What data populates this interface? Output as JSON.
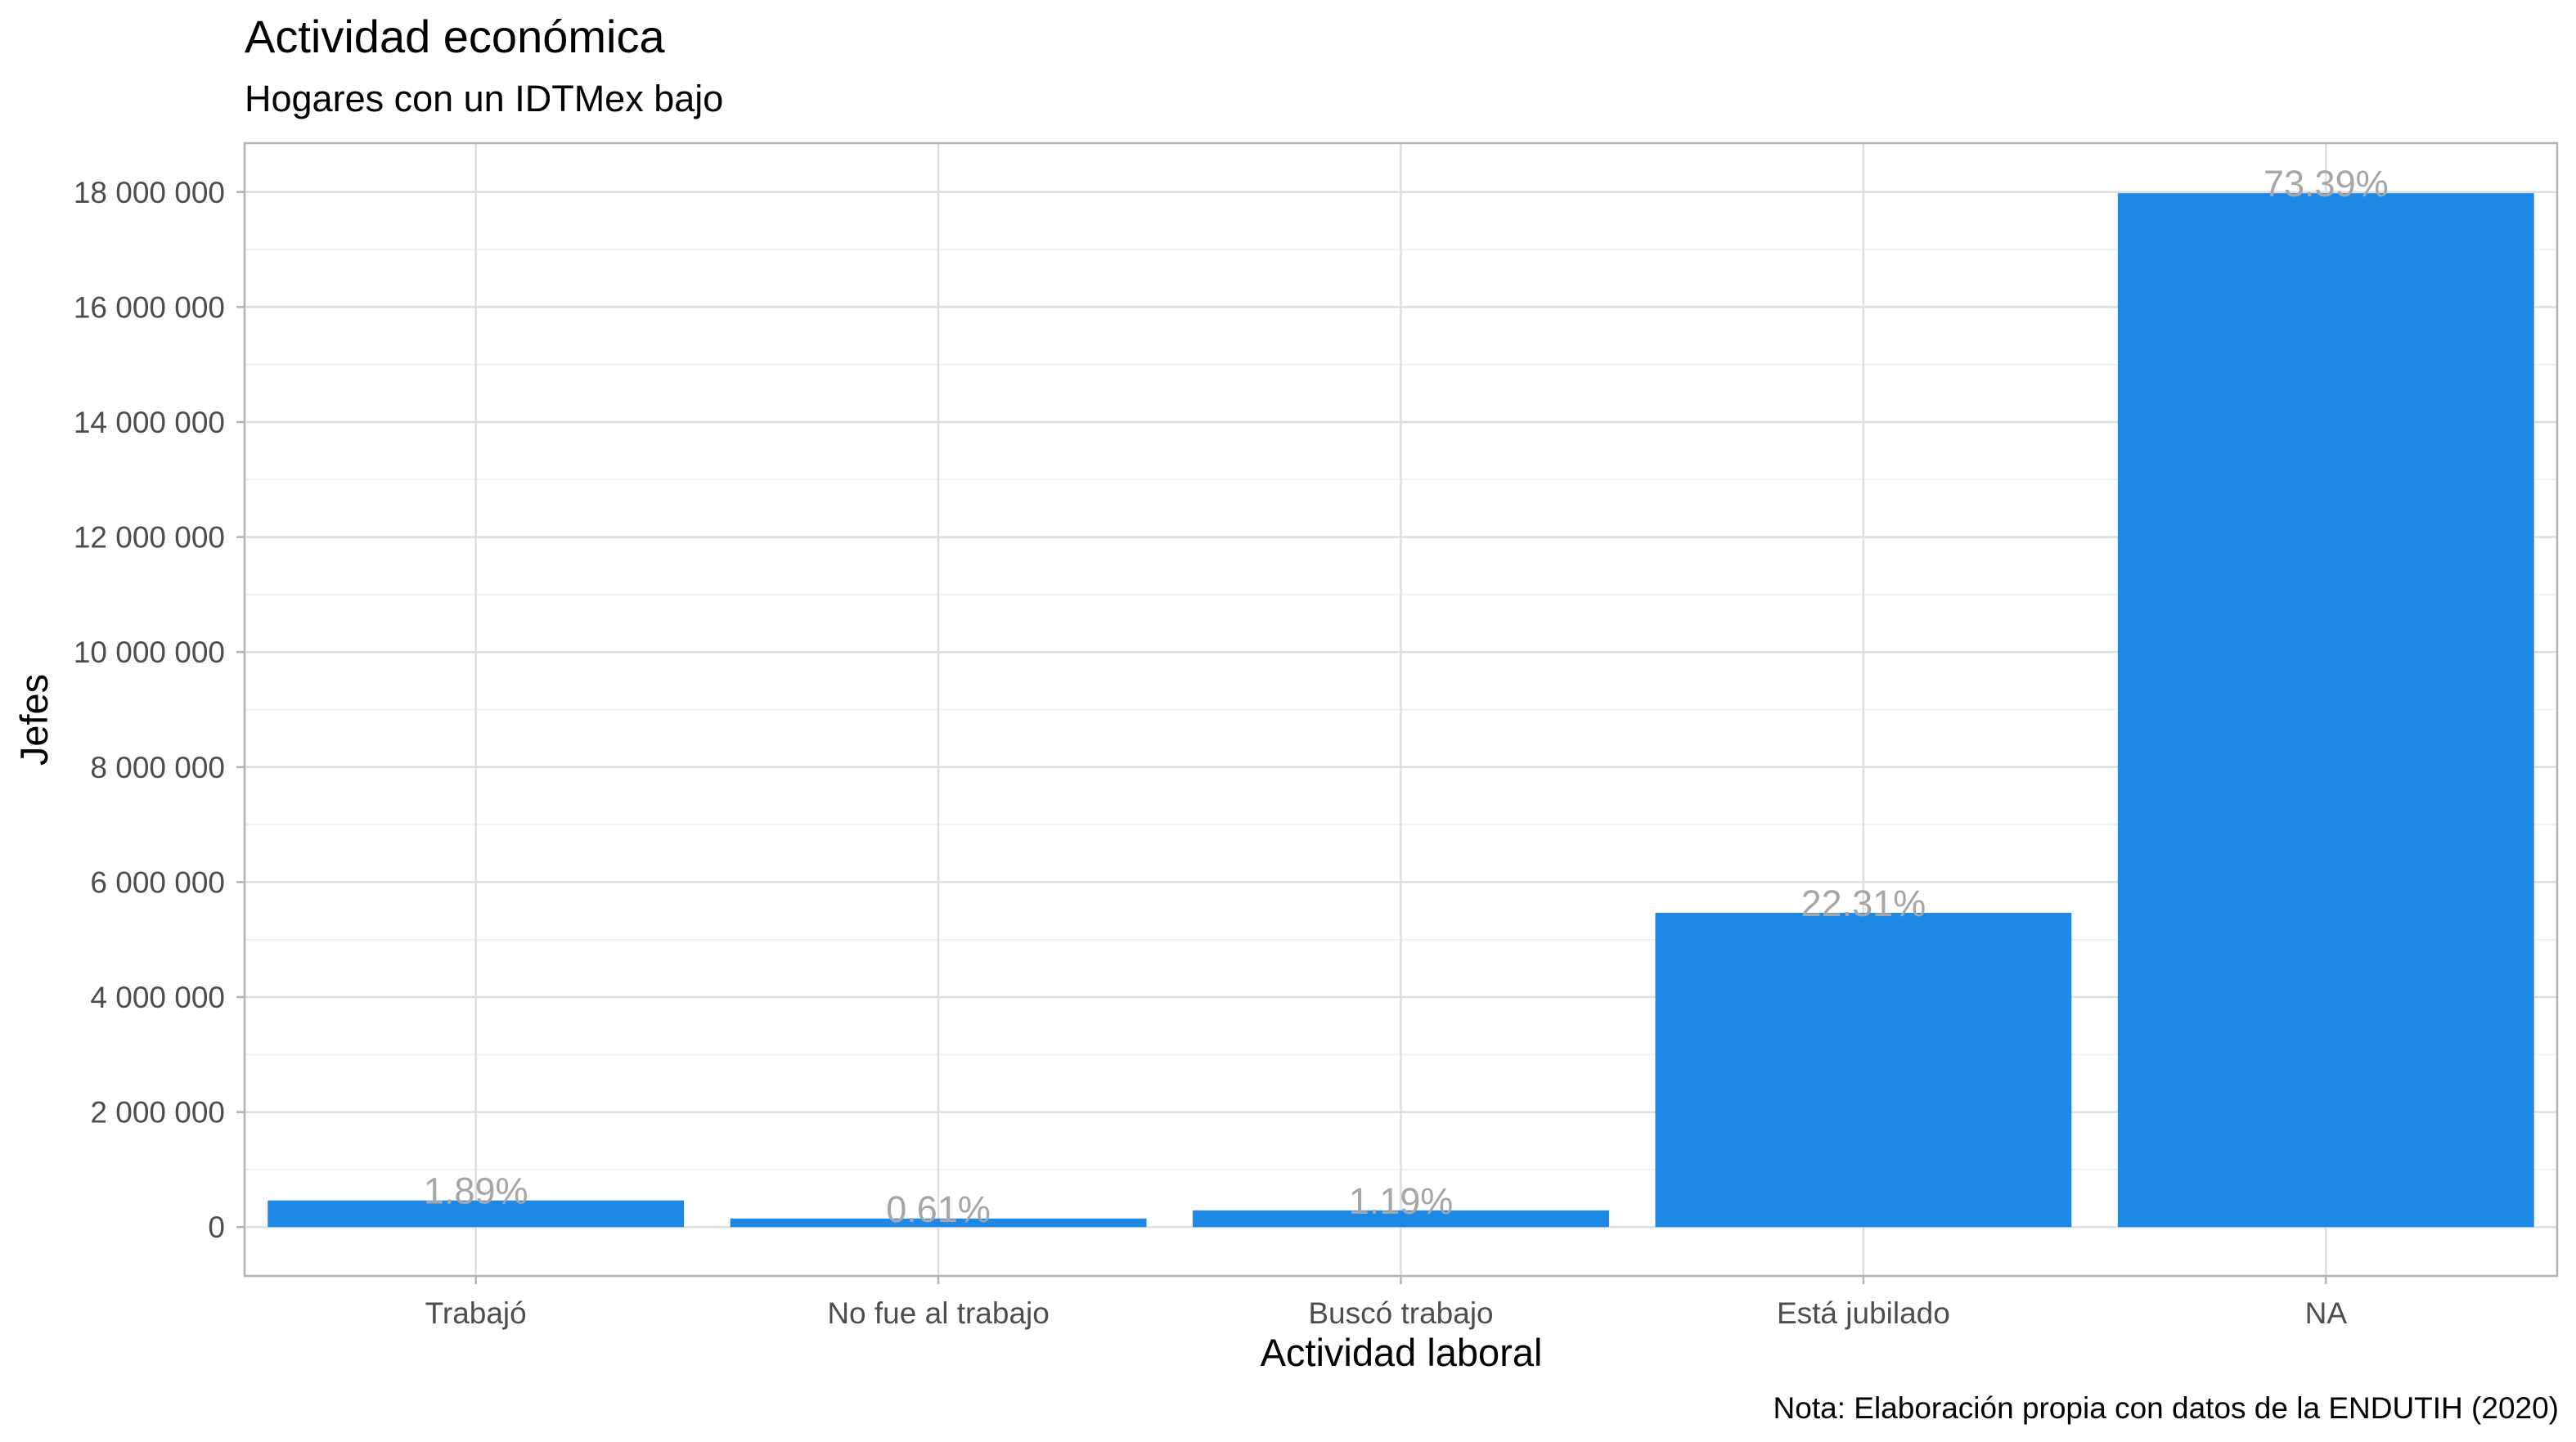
{
  "chart_data": {
    "type": "bar",
    "title": "Actividad económica",
    "subtitle": "Hogares con un IDTMex bajo",
    "xlabel": "Actividad laboral",
    "ylabel": "Jefes",
    "caption": "Nota: Elaboración propia con datos de la ENDUTIH (2020)",
    "categories": [
      "Trabajó",
      "No fue al trabajo",
      "Buscó trabajo",
      "Está jubilado",
      "NA"
    ],
    "values": [
      463000,
      149000,
      291000,
      5465000,
      17980000
    ],
    "data_labels": [
      "1.89%",
      "0.61%",
      "1.19%",
      "22.31%",
      "73.39%"
    ],
    "yticks": [
      0,
      2000000,
      4000000,
      6000000,
      8000000,
      10000000,
      12000000,
      14000000,
      16000000,
      18000000
    ],
    "ytick_labels": [
      "0",
      "2 000 000",
      "4 000 000",
      "6 000 000",
      "8 000 000",
      "10 000 000",
      "12 000 000",
      "14 000 000",
      "16 000 000",
      "18 000 000"
    ],
    "ylim": [
      -850000,
      18850000
    ],
    "bar_color": "#1e88e5",
    "data_label_color": "#a6a6a6",
    "grid": true,
    "legend": "none"
  }
}
